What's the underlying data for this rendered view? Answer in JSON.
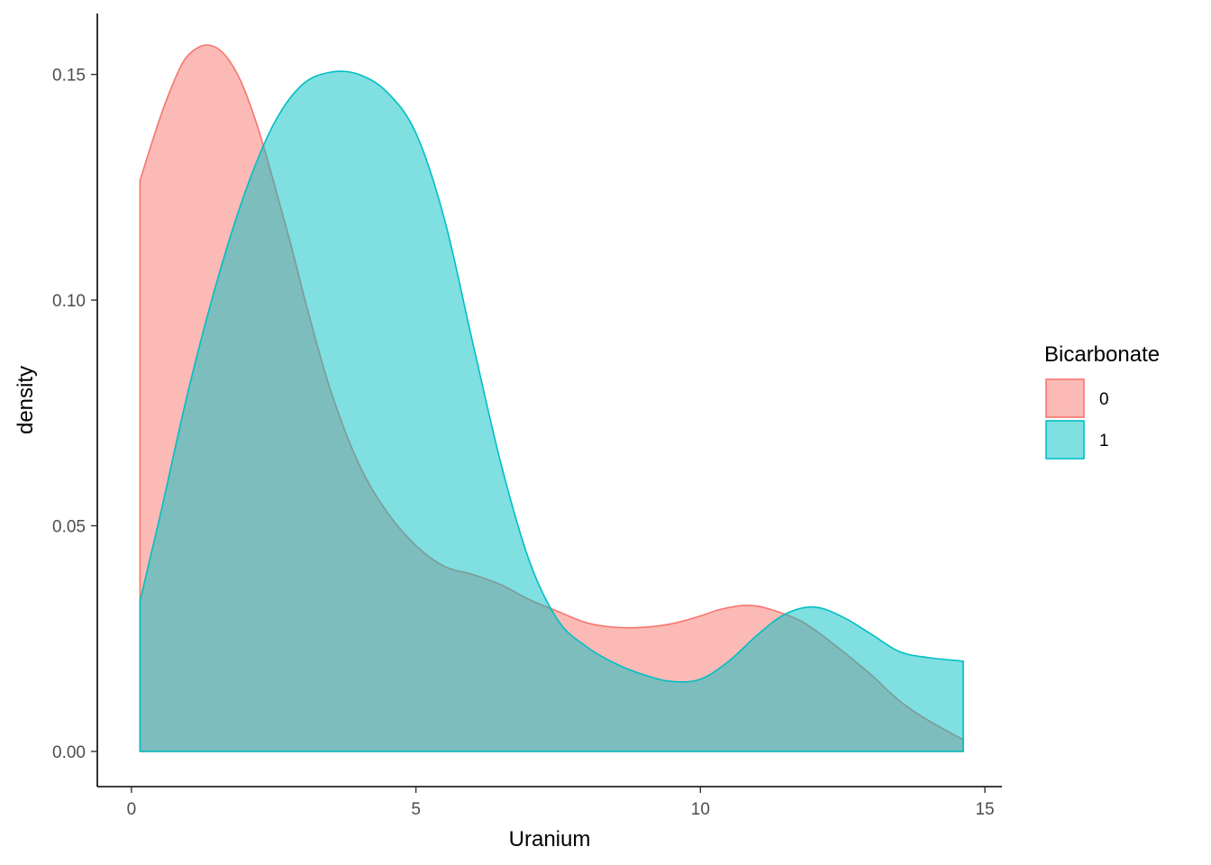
{
  "chart_data": {
    "type": "area",
    "xlabel": "Uranium",
    "ylabel": "density",
    "xlim": [
      -0.6,
      15.3
    ],
    "ylim": [
      -0.0078,
      0.1635
    ],
    "x_ticks": [
      0,
      5,
      10,
      15
    ],
    "x_tick_labels": [
      "0",
      "5",
      "10",
      "15"
    ],
    "y_ticks": [
      0.0,
      0.05,
      0.1,
      0.15
    ],
    "y_tick_labels": [
      "0.00",
      "0.05",
      "0.10",
      "0.15"
    ],
    "grid": false,
    "legend": {
      "title": "Bicarbonate",
      "placement": "right",
      "entries": [
        "0",
        "1"
      ]
    },
    "series": [
      {
        "name": "0",
        "fill": "#F8766D",
        "fill_opacity": 0.5,
        "stroke": "#F8766D",
        "x": [
          0.15,
          0.5,
          0.8,
          1.0,
          1.3,
          1.6,
          1.9,
          2.2,
          2.5,
          2.8,
          3.1,
          3.5,
          4.0,
          4.5,
          5.0,
          5.5,
          6.0,
          6.5,
          7.0,
          7.5,
          8.0,
          8.5,
          9.0,
          9.5,
          10.0,
          10.3,
          10.7,
          11.0,
          11.3,
          11.7,
          12.0,
          12.5,
          13.0,
          13.5,
          14.0,
          14.62
        ],
        "y": [
          0.1265,
          0.1403,
          0.15,
          0.1543,
          0.1565,
          0.1549,
          0.1491,
          0.1391,
          0.1262,
          0.1124,
          0.0977,
          0.08,
          0.0636,
          0.0529,
          0.0456,
          0.041,
          0.0392,
          0.0369,
          0.0336,
          0.031,
          0.0285,
          0.0275,
          0.0275,
          0.0283,
          0.03,
          0.0313,
          0.0323,
          0.0322,
          0.0312,
          0.0293,
          0.027,
          0.0222,
          0.017,
          0.0112,
          0.0069,
          0.0026
        ]
      },
      {
        "name": "1",
        "fill": "#00BFC4",
        "fill_opacity": 0.5,
        "stroke": "#00BFC4",
        "x": [
          0.15,
          0.5,
          1.0,
          1.5,
          2.0,
          2.5,
          3.0,
          3.5,
          4.0,
          4.5,
          5.0,
          5.5,
          6.0,
          6.5,
          7.0,
          7.5,
          8.0,
          8.5,
          9.0,
          9.5,
          10.0,
          10.5,
          11.0,
          11.5,
          12.0,
          12.5,
          13.0,
          13.5,
          14.0,
          14.62
        ],
        "y": [
          0.0333,
          0.052,
          0.08,
          0.104,
          0.124,
          0.139,
          0.1477,
          0.1505,
          0.15,
          0.146,
          0.137,
          0.118,
          0.0905,
          0.0635,
          0.042,
          0.029,
          0.0232,
          0.0195,
          0.017,
          0.0155,
          0.016,
          0.02,
          0.0258,
          0.0305,
          0.032,
          0.0298,
          0.026,
          0.0221,
          0.0208,
          0.02
        ]
      }
    ]
  }
}
